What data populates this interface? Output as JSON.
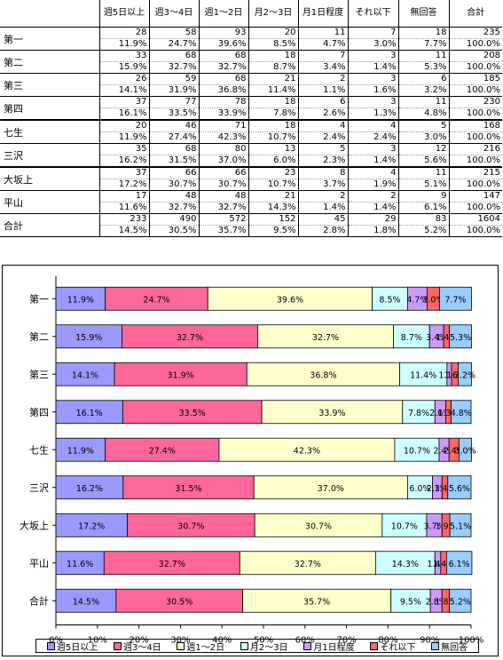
{
  "table": {
    "headers": [
      "週5日以上",
      "週3～4日",
      "週1～2日",
      "月2～3日",
      "月1日程度",
      "それ以下",
      "無回答",
      "合計"
    ],
    "rows": [
      {
        "name": "第一",
        "counts": [
          "28",
          "58",
          "93",
          "20",
          "11",
          "7",
          "18",
          "235"
        ],
        "pcts": [
          "11.9%",
          "24.7%",
          "39.6%",
          "8.5%",
          "4.7%",
          "3.0%",
          "7.7%",
          "100.0%"
        ]
      },
      {
        "name": "第二",
        "counts": [
          "33",
          "68",
          "68",
          "18",
          "7",
          "3",
          "11",
          "208"
        ],
        "pcts": [
          "15.9%",
          "32.7%",
          "32.7%",
          "8.7%",
          "3.4%",
          "1.4%",
          "5.3%",
          "100.0%"
        ]
      },
      {
        "name": "第三",
        "counts": [
          "26",
          "59",
          "68",
          "21",
          "2",
          "3",
          "6",
          "185"
        ],
        "pcts": [
          "14.1%",
          "31.9%",
          "36.8%",
          "11.4%",
          "1.1%",
          "1.6%",
          "3.2%",
          "100.0%"
        ]
      },
      {
        "name": "第四",
        "counts": [
          "37",
          "77",
          "78",
          "18",
          "6",
          "3",
          "11",
          "230"
        ],
        "pcts": [
          "16.1%",
          "33.5%",
          "33.9%",
          "7.8%",
          "2.6%",
          "1.3%",
          "4.8%",
          "100.0%"
        ]
      },
      {
        "name": "七生",
        "counts": [
          "20",
          "46",
          "71",
          "18",
          "4",
          "4",
          "5",
          "168"
        ],
        "pcts": [
          "11.9%",
          "27.4%",
          "42.3%",
          "10.7%",
          "2.4%",
          "2.4%",
          "3.0%",
          "100.0%"
        ]
      },
      {
        "name": "三沢",
        "counts": [
          "35",
          "68",
          "80",
          "13",
          "5",
          "3",
          "12",
          "216"
        ],
        "pcts": [
          "16.2%",
          "31.5%",
          "37.0%",
          "6.0%",
          "2.3%",
          "1.4%",
          "5.6%",
          "100.0%"
        ]
      },
      {
        "name": "大坂上",
        "counts": [
          "37",
          "66",
          "66",
          "23",
          "8",
          "4",
          "11",
          "215"
        ],
        "pcts": [
          "17.2%",
          "30.7%",
          "30.7%",
          "10.7%",
          "3.7%",
          "1.9%",
          "5.1%",
          "100.0%"
        ]
      },
      {
        "name": "平山",
        "counts": [
          "17",
          "48",
          "48",
          "21",
          "2",
          "2",
          "9",
          "147"
        ],
        "pcts": [
          "11.6%",
          "32.7%",
          "32.7%",
          "14.3%",
          "1.4%",
          "1.4%",
          "6.1%",
          "100.0%"
        ]
      },
      {
        "name": "合計",
        "counts": [
          "233",
          "490",
          "572",
          "152",
          "45",
          "29",
          "83",
          "1604"
        ],
        "pcts": [
          "14.5%",
          "30.5%",
          "35.7%",
          "9.5%",
          "2.8%",
          "1.8%",
          "5.2%",
          "100.0%"
        ]
      }
    ]
  },
  "chart_data": {
    "type": "bar",
    "orientation": "horizontal",
    "stacked": true,
    "categories": [
      "第一",
      "第二",
      "第三",
      "第四",
      "七生",
      "三沢",
      "大坂上",
      "平山",
      "合計"
    ],
    "series": [
      {
        "name": "週5日以上",
        "color": "#9999ff",
        "values": [
          11.9,
          15.9,
          14.1,
          16.1,
          11.9,
          16.2,
          17.2,
          11.6,
          14.5
        ]
      },
      {
        "name": "週3～4日",
        "color": "#ff6699",
        "values": [
          24.7,
          32.7,
          31.9,
          33.5,
          27.4,
          31.5,
          30.7,
          32.7,
          30.5
        ]
      },
      {
        "name": "週1～2日",
        "color": "#ffffcc",
        "values": [
          39.6,
          32.7,
          36.8,
          33.9,
          42.3,
          37.0,
          30.7,
          32.7,
          35.7
        ]
      },
      {
        "name": "月2～3日",
        "color": "#ccffff",
        "values": [
          8.5,
          8.7,
          11.4,
          7.8,
          10.7,
          6.0,
          10.7,
          14.3,
          9.5
        ]
      },
      {
        "name": "月1日程度",
        "color": "#cc99ff",
        "values": [
          4.7,
          3.4,
          1.1,
          2.6,
          2.4,
          2.3,
          3.7,
          1.4,
          2.8
        ]
      },
      {
        "name": "それ以下",
        "color": "#ff6666",
        "values": [
          3.0,
          1.4,
          1.6,
          1.3,
          2.4,
          1.4,
          1.9,
          1.4,
          1.8
        ]
      },
      {
        "name": "無回答",
        "color": "#99ccff",
        "values": [
          7.7,
          5.3,
          3.2,
          4.8,
          3.0,
          5.6,
          5.1,
          6.1,
          5.2
        ]
      }
    ],
    "xlim": [
      0,
      100
    ],
    "xticks": [
      "0%",
      "10%",
      "20%",
      "30%",
      "40%",
      "50%",
      "60%",
      "70%",
      "80%",
      "90%",
      "100%"
    ],
    "legend_position": "bottom",
    "grid": false
  }
}
